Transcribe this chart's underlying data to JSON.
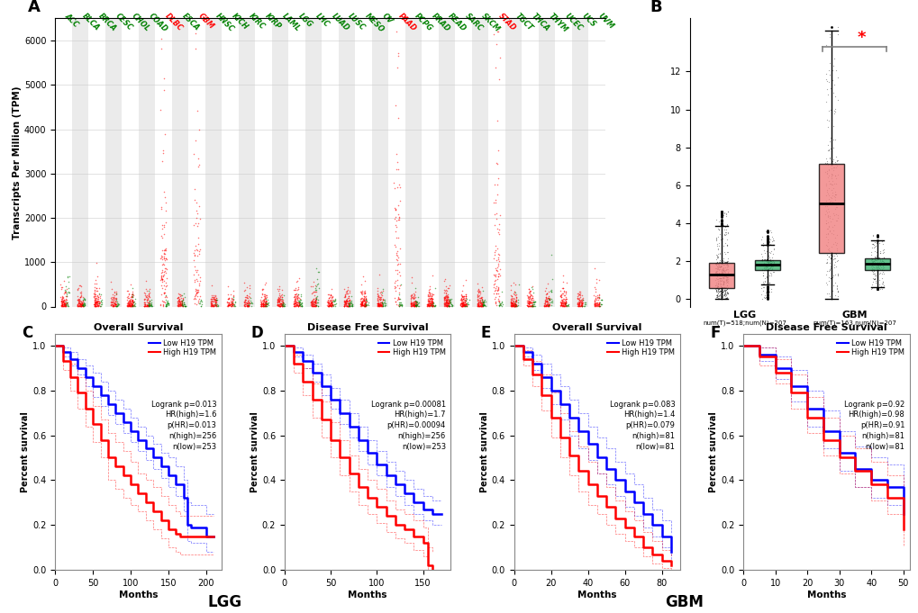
{
  "panel_A": {
    "categories": [
      "ACC",
      "BLCA",
      "BRCA",
      "CESC",
      "CHOL",
      "COAD",
      "DLBC",
      "ESCA",
      "GBM",
      "HNSC",
      "KICH",
      "KIRC",
      "KIRP",
      "LAML",
      "LGG",
      "LHC",
      "LUAD",
      "LUSC",
      "MESO",
      "OV",
      "PAAD",
      "PCPG",
      "PRAD",
      "READ",
      "SARC",
      "SKCM",
      "STAD",
      "TGCT",
      "THCA",
      "THYM",
      "UCEC",
      "UCS",
      "UVM"
    ],
    "highlighted_red": [
      "DLBC",
      "GBM",
      "PAAD",
      "STAD"
    ],
    "highlighted_green": [
      "ACC",
      "LHC",
      "THYM"
    ],
    "ylabel": "Transcripts Per Million (TPM)",
    "yticks": [
      0,
      1000,
      2000,
      3000,
      4000,
      5000,
      6000
    ]
  },
  "panel_B": {
    "lgg_tumor": {
      "q1": 0.5,
      "median": 1.1,
      "q3": 2.0,
      "whisker_low": 0.0,
      "whisker_high": 4.0
    },
    "lgg_normal": {
      "q1": 1.5,
      "median": 1.8,
      "q3": 2.1,
      "whisker_low": 0.0,
      "whisker_high": 3.2
    },
    "gbm_tumor": {
      "q1": 2.2,
      "median": 4.9,
      "q3": 7.5,
      "whisker_low": 0.0,
      "whisker_high": 12.5
    },
    "gbm_normal": {
      "q1": 1.5,
      "median": 1.8,
      "q3": 2.2,
      "whisker_low": 0.5,
      "whisker_high": 3.0
    },
    "yticks": [
      0,
      2,
      4,
      6,
      8,
      10,
      12
    ],
    "tumor_color": "#F08080",
    "normal_color": "#3CB371"
  },
  "panel_C": {
    "title": "Overall Survival",
    "xlabel": "Months",
    "ylabel": "Percent survival",
    "xlim": [
      0,
      220
    ],
    "ylim": [
      0,
      1.05
    ],
    "xticks": [
      0,
      50,
      100,
      150,
      200
    ],
    "legend_lines": [
      "Low H19 TPM",
      "High H19 TPM"
    ],
    "legend_stats": "Logrank p=0.013\nHR(high)=1.6\np(HR)=0.013\nn(high)=256\nn(low)=253",
    "blue_x": [
      0,
      10,
      20,
      30,
      40,
      50,
      60,
      70,
      80,
      90,
      100,
      110,
      120,
      130,
      140,
      150,
      160,
      170,
      175,
      180,
      200,
      210
    ],
    "blue_y": [
      1.0,
      0.97,
      0.94,
      0.9,
      0.86,
      0.82,
      0.78,
      0.74,
      0.7,
      0.66,
      0.62,
      0.58,
      0.54,
      0.5,
      0.46,
      0.42,
      0.38,
      0.32,
      0.2,
      0.19,
      0.15,
      0.15
    ],
    "red_x": [
      0,
      10,
      20,
      30,
      40,
      50,
      60,
      70,
      80,
      90,
      100,
      110,
      120,
      130,
      140,
      150,
      160,
      165,
      170,
      200,
      210
    ],
    "red_y": [
      1.0,
      0.93,
      0.86,
      0.79,
      0.72,
      0.65,
      0.58,
      0.5,
      0.46,
      0.42,
      0.38,
      0.34,
      0.3,
      0.26,
      0.22,
      0.18,
      0.16,
      0.15,
      0.15,
      0.15,
      0.15
    ],
    "blue_ci_upper": [
      1.0,
      0.99,
      0.97,
      0.94,
      0.91,
      0.88,
      0.84,
      0.8,
      0.76,
      0.72,
      0.68,
      0.64,
      0.6,
      0.56,
      0.52,
      0.5,
      0.46,
      0.4,
      0.3,
      0.29,
      0.25,
      0.25
    ],
    "blue_ci_lower": [
      1.0,
      0.95,
      0.91,
      0.87,
      0.82,
      0.77,
      0.73,
      0.69,
      0.65,
      0.61,
      0.57,
      0.53,
      0.49,
      0.45,
      0.41,
      0.37,
      0.33,
      0.26,
      0.13,
      0.12,
      0.08,
      0.08
    ],
    "red_ci_upper": [
      1.0,
      0.97,
      0.92,
      0.86,
      0.8,
      0.73,
      0.67,
      0.61,
      0.57,
      0.53,
      0.48,
      0.43,
      0.4,
      0.37,
      0.33,
      0.29,
      0.26,
      0.24,
      0.24,
      0.24,
      0.24
    ],
    "red_ci_lower": [
      1.0,
      0.89,
      0.8,
      0.72,
      0.64,
      0.57,
      0.5,
      0.4,
      0.36,
      0.32,
      0.29,
      0.26,
      0.22,
      0.18,
      0.14,
      0.1,
      0.08,
      0.07,
      0.07,
      0.07,
      0.07
    ]
  },
  "panel_D": {
    "title": "Disease Free Survival",
    "xlabel": "Months",
    "ylabel": "Percent survival",
    "xlim": [
      0,
      180
    ],
    "ylim": [
      0,
      1.05
    ],
    "xticks": [
      0,
      50,
      100,
      150
    ],
    "legend_lines": [
      "Low H19 TPM",
      "High H19 TPM"
    ],
    "legend_stats": "Logrank p=0.00081\nHR(high)=1.7\np(HR)=0.00094\nn(high)=256\nn(low)=253",
    "blue_x": [
      0,
      10,
      20,
      30,
      40,
      50,
      60,
      70,
      80,
      90,
      100,
      110,
      120,
      130,
      140,
      150,
      160,
      170
    ],
    "blue_y": [
      1.0,
      0.97,
      0.93,
      0.88,
      0.82,
      0.76,
      0.7,
      0.64,
      0.58,
      0.52,
      0.47,
      0.42,
      0.38,
      0.34,
      0.3,
      0.27,
      0.25,
      0.25
    ],
    "red_x": [
      0,
      10,
      20,
      30,
      40,
      50,
      60,
      70,
      80,
      90,
      100,
      110,
      120,
      130,
      140,
      150,
      155,
      160
    ],
    "red_y": [
      1.0,
      0.92,
      0.84,
      0.76,
      0.67,
      0.58,
      0.5,
      0.43,
      0.37,
      0.32,
      0.28,
      0.24,
      0.2,
      0.18,
      0.15,
      0.12,
      0.02,
      0.0
    ],
    "blue_ci_upper": [
      1.0,
      0.99,
      0.96,
      0.92,
      0.87,
      0.81,
      0.76,
      0.7,
      0.64,
      0.58,
      0.53,
      0.48,
      0.44,
      0.4,
      0.36,
      0.33,
      0.31,
      0.31
    ],
    "blue_ci_lower": [
      1.0,
      0.95,
      0.9,
      0.84,
      0.78,
      0.72,
      0.65,
      0.59,
      0.53,
      0.47,
      0.42,
      0.37,
      0.33,
      0.29,
      0.25,
      0.22,
      0.2,
      0.2
    ],
    "red_ci_upper": [
      1.0,
      0.96,
      0.9,
      0.83,
      0.75,
      0.66,
      0.58,
      0.51,
      0.45,
      0.4,
      0.36,
      0.31,
      0.27,
      0.25,
      0.22,
      0.19,
      0.1,
      0.08
    ],
    "red_ci_lower": [
      1.0,
      0.88,
      0.78,
      0.68,
      0.59,
      0.5,
      0.42,
      0.35,
      0.29,
      0.25,
      0.21,
      0.17,
      0.14,
      0.12,
      0.09,
      0.06,
      0.0,
      0.0
    ]
  },
  "panel_E": {
    "title": "Overall Survival",
    "xlabel": "Months",
    "ylabel": "Percent survival",
    "xlim": [
      0,
      90
    ],
    "ylim": [
      0,
      1.05
    ],
    "xticks": [
      0,
      20,
      40,
      60,
      80
    ],
    "legend_lines": [
      "Low H19 TPM",
      "High H19 TPM"
    ],
    "legend_stats": "Logrank p=0.083\nHR(high)=1.4\np(HR)=0.079\nn(high)=81\nn(low)=81",
    "blue_x": [
      0,
      5,
      10,
      15,
      20,
      25,
      30,
      35,
      40,
      45,
      50,
      55,
      60,
      65,
      70,
      75,
      80,
      85
    ],
    "blue_y": [
      1.0,
      0.97,
      0.92,
      0.86,
      0.8,
      0.74,
      0.68,
      0.62,
      0.56,
      0.5,
      0.45,
      0.4,
      0.35,
      0.3,
      0.25,
      0.2,
      0.15,
      0.08
    ],
    "red_x": [
      0,
      5,
      10,
      15,
      20,
      25,
      30,
      35,
      40,
      45,
      50,
      55,
      60,
      65,
      70,
      75,
      80,
      85
    ],
    "red_y": [
      1.0,
      0.94,
      0.87,
      0.78,
      0.68,
      0.59,
      0.51,
      0.44,
      0.38,
      0.33,
      0.28,
      0.23,
      0.19,
      0.15,
      0.1,
      0.07,
      0.04,
      0.02
    ],
    "blue_ci_upper": [
      1.0,
      0.99,
      0.96,
      0.92,
      0.87,
      0.82,
      0.76,
      0.7,
      0.64,
      0.59,
      0.54,
      0.48,
      0.43,
      0.38,
      0.32,
      0.27,
      0.22,
      0.16
    ],
    "blue_ci_lower": [
      1.0,
      0.95,
      0.89,
      0.81,
      0.74,
      0.67,
      0.6,
      0.54,
      0.49,
      0.43,
      0.38,
      0.33,
      0.28,
      0.24,
      0.19,
      0.15,
      0.1,
      0.03
    ],
    "red_ci_upper": [
      1.0,
      0.98,
      0.93,
      0.87,
      0.79,
      0.7,
      0.62,
      0.55,
      0.48,
      0.43,
      0.37,
      0.31,
      0.26,
      0.22,
      0.17,
      0.13,
      0.09,
      0.06
    ],
    "red_ci_lower": [
      1.0,
      0.91,
      0.82,
      0.71,
      0.59,
      0.5,
      0.42,
      0.35,
      0.29,
      0.25,
      0.2,
      0.16,
      0.13,
      0.1,
      0.06,
      0.03,
      0.01,
      0.0
    ]
  },
  "panel_F": {
    "title": "Disease Free Survival",
    "xlabel": "Months",
    "ylabel": "Percent survival",
    "xlim": [
      0,
      52
    ],
    "ylim": [
      0,
      1.05
    ],
    "xticks": [
      0,
      10,
      20,
      30,
      40,
      50
    ],
    "legend_lines": [
      "Low H19 TPM",
      "High H19 TPM"
    ],
    "legend_stats": "Logrank p=0.92\nHR(high)=0.98\np(HR)=0.91\nn(high)=81\nn(low)=81",
    "blue_x": [
      0,
      5,
      10,
      15,
      20,
      25,
      30,
      35,
      40,
      45,
      50
    ],
    "blue_y": [
      1.0,
      0.96,
      0.9,
      0.82,
      0.72,
      0.62,
      0.52,
      0.45,
      0.4,
      0.37,
      0.25
    ],
    "red_x": [
      0,
      5,
      10,
      15,
      20,
      25,
      30,
      35,
      40,
      45,
      50
    ],
    "red_y": [
      1.0,
      0.95,
      0.88,
      0.79,
      0.68,
      0.58,
      0.5,
      0.44,
      0.38,
      0.32,
      0.18
    ],
    "blue_ci_upper": [
      1.0,
      0.99,
      0.95,
      0.89,
      0.8,
      0.71,
      0.62,
      0.55,
      0.5,
      0.47,
      0.34
    ],
    "blue_ci_lower": [
      1.0,
      0.93,
      0.85,
      0.75,
      0.64,
      0.54,
      0.44,
      0.37,
      0.32,
      0.29,
      0.18
    ],
    "red_ci_upper": [
      1.0,
      0.99,
      0.94,
      0.87,
      0.77,
      0.68,
      0.6,
      0.54,
      0.48,
      0.42,
      0.28
    ],
    "red_ci_lower": [
      1.0,
      0.91,
      0.83,
      0.72,
      0.61,
      0.51,
      0.43,
      0.37,
      0.31,
      0.25,
      0.11
    ]
  },
  "bg_color": "#FFFFFF"
}
